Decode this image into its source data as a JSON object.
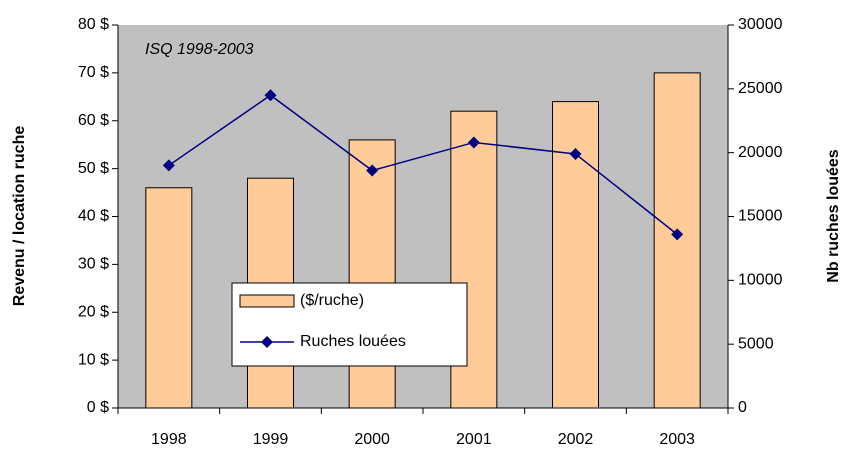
{
  "chart_data": {
    "type": "bar",
    "annotation": "ISQ 1998-2003",
    "y_label": "Revenu / location ruche",
    "y2_label": "Nb ruches louées",
    "categories": [
      "1998",
      "1999",
      "2000",
      "2001",
      "2002",
      "2003"
    ],
    "series": [
      {
        "name": "($/ruche)",
        "type": "bar",
        "color": "#ffcc99",
        "values": [
          46,
          48,
          56,
          62,
          64,
          70
        ]
      },
      {
        "name": "Ruches louées",
        "type": "line",
        "axis": "y2",
        "color": "#000080",
        "values": [
          19000,
          24500,
          18600,
          20800,
          19900,
          13600
        ]
      }
    ],
    "ylim": [
      0,
      80
    ],
    "yticks": [
      {
        "value": 0,
        "label": "0 $"
      },
      {
        "value": 10,
        "label": "10 $"
      },
      {
        "value": 20,
        "label": "20 $"
      },
      {
        "value": 30,
        "label": "30 $"
      },
      {
        "value": 40,
        "label": "40 $"
      },
      {
        "value": 50,
        "label": "50 $"
      },
      {
        "value": 60,
        "label": "60 $"
      },
      {
        "value": 70,
        "label": "70 $"
      },
      {
        "value": 80,
        "label": "80 $"
      }
    ],
    "y2lim": [
      0,
      30000
    ],
    "y2ticks": [
      0,
      5000,
      10000,
      15000,
      20000,
      25000,
      30000
    ],
    "plot_background": "#c0c0c0",
    "grid": false
  }
}
